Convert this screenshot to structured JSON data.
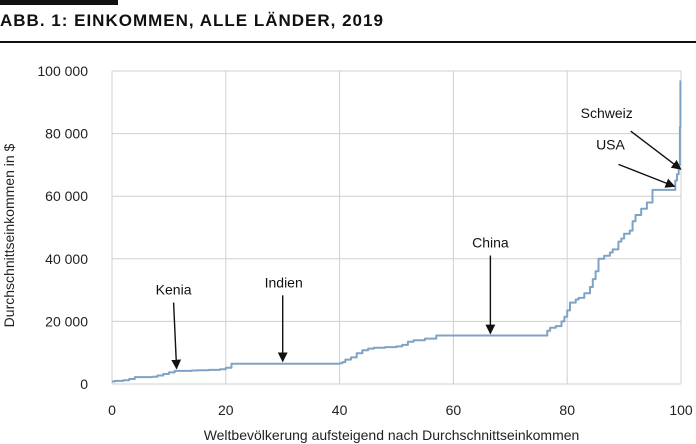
{
  "header": {
    "title": "ABB. 1: EINKOMMEN, ALLE LÄNDER, 2019"
  },
  "chart_data": {
    "type": "line",
    "title": "ABB. 1: EINKOMMEN, ALLE LÄNDER, 2019",
    "xlabel": "Weltbevölkerung aufsteigend nach Durchschnittseinkommen",
    "ylabel": "Durchschnittseinkommen in $",
    "xlim": [
      0,
      100
    ],
    "ylim": [
      0,
      100000
    ],
    "xticks": [
      0,
      20,
      40,
      60,
      80,
      100
    ],
    "yticks": [
      0,
      20000,
      40000,
      60000,
      80000,
      100000
    ],
    "xtick_labels": [
      "0",
      "20",
      "40",
      "60",
      "80",
      "100"
    ],
    "ytick_labels": [
      "0",
      "20 000",
      "40 000",
      "60 000",
      "80 000",
      "100 000"
    ],
    "grid": true,
    "line_color": "#7fa3c5",
    "series": [
      {
        "step": true,
        "points": [
          [
            0,
            800
          ],
          [
            0.5,
            1000
          ],
          [
            2,
            1200
          ],
          [
            3,
            1600
          ],
          [
            4,
            2200
          ],
          [
            7,
            2300
          ],
          [
            8,
            2700
          ],
          [
            9,
            3200
          ],
          [
            10,
            3700
          ],
          [
            11,
            4200
          ],
          [
            14,
            4300
          ],
          [
            15,
            4400
          ],
          [
            17,
            4500
          ],
          [
            19,
            4700
          ],
          [
            20,
            5200
          ],
          [
            21,
            6500
          ],
          [
            40,
            6600
          ],
          [
            40.5,
            7000
          ],
          [
            41,
            7800
          ],
          [
            42,
            8500
          ],
          [
            43,
            9800
          ],
          [
            44,
            10800
          ],
          [
            45,
            11300
          ],
          [
            46,
            11600
          ],
          [
            48,
            11800
          ],
          [
            50,
            12000
          ],
          [
            51,
            12500
          ],
          [
            52,
            13500
          ],
          [
            53,
            14000
          ],
          [
            55,
            14500
          ],
          [
            57,
            15500
          ],
          [
            76,
            15500
          ],
          [
            76.5,
            17000
          ],
          [
            77,
            18000
          ],
          [
            78,
            18500
          ],
          [
            79,
            20000
          ],
          [
            79.5,
            21500
          ],
          [
            80,
            23500
          ],
          [
            80.5,
            26000
          ],
          [
            81.5,
            27000
          ],
          [
            82,
            27500
          ],
          [
            83,
            29000
          ],
          [
            84,
            31000
          ],
          [
            84.5,
            33500
          ],
          [
            85,
            36000
          ],
          [
            85.5,
            40000
          ],
          [
            86.5,
            41000
          ],
          [
            87.5,
            42000
          ],
          [
            88,
            43000
          ],
          [
            89,
            45500
          ],
          [
            89.5,
            46500
          ],
          [
            90,
            48000
          ],
          [
            91,
            49000
          ],
          [
            91.5,
            52000
          ],
          [
            92,
            54000
          ],
          [
            93,
            56000
          ],
          [
            94,
            58000
          ],
          [
            95,
            62000
          ],
          [
            98.5,
            62000
          ],
          [
            99,
            65000
          ],
          [
            99.3,
            67000
          ],
          [
            99.6,
            70000
          ],
          [
            99.8,
            82000
          ],
          [
            99.9,
            97000
          ]
        ]
      }
    ],
    "annotations": [
      {
        "label": "Kenia",
        "x": 11,
        "y": 4300
      },
      {
        "label": "Indien",
        "x": 30,
        "y": 6600
      },
      {
        "label": "China",
        "x": 66.5,
        "y": 15500
      },
      {
        "label": "USA",
        "x": 98.5,
        "y": 62500
      },
      {
        "label": "Schweiz",
        "x": 99.6,
        "y": 68000
      }
    ]
  }
}
